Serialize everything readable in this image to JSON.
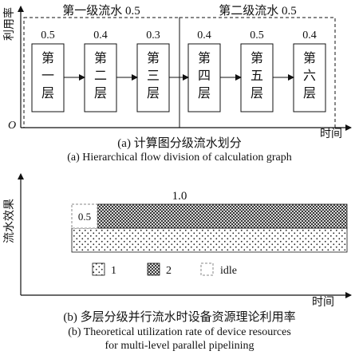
{
  "top": {
    "y_axis_label": "利用率",
    "origin_label": "O",
    "x_axis_label": "时间",
    "stage_groups": [
      {
        "label": "第一级流水 0.5"
      },
      {
        "label": "第二级流水 0.5"
      }
    ],
    "layers": [
      {
        "utilization": "0.5",
        "label": [
          "第",
          "一",
          "层"
        ]
      },
      {
        "utilization": "0.4",
        "label": [
          "第",
          "二",
          "层"
        ]
      },
      {
        "utilization": "0.3",
        "label": [
          "第",
          "三",
          "层"
        ]
      },
      {
        "utilization": "0.4",
        "label": [
          "第",
          "四",
          "层"
        ]
      },
      {
        "utilization": "0.5",
        "label": [
          "第",
          "五",
          "层"
        ]
      },
      {
        "utilization": "0.4",
        "label": [
          "第",
          "六",
          "层"
        ]
      }
    ],
    "caption_cn": "(a) 计算图分级流水划分",
    "caption_en": "(a) Hierarchical flow division of calculation graph"
  },
  "bottom": {
    "y_axis_label": "流水效果",
    "x_axis_label": "时间",
    "top_value": "1.0",
    "idle_value": "0.5",
    "legend": [
      {
        "key": "dotted",
        "label": "1"
      },
      {
        "key": "crosshatch",
        "label": "2"
      },
      {
        "key": "idle",
        "label": "idle"
      }
    ],
    "caption_cn": "(b) 多层分级并行流水时设备资源理论利用率",
    "caption_en_line1": "(b) Theoretical utilization rate of device resources",
    "caption_en_line2": "for multi-level parallel pipelining"
  }
}
